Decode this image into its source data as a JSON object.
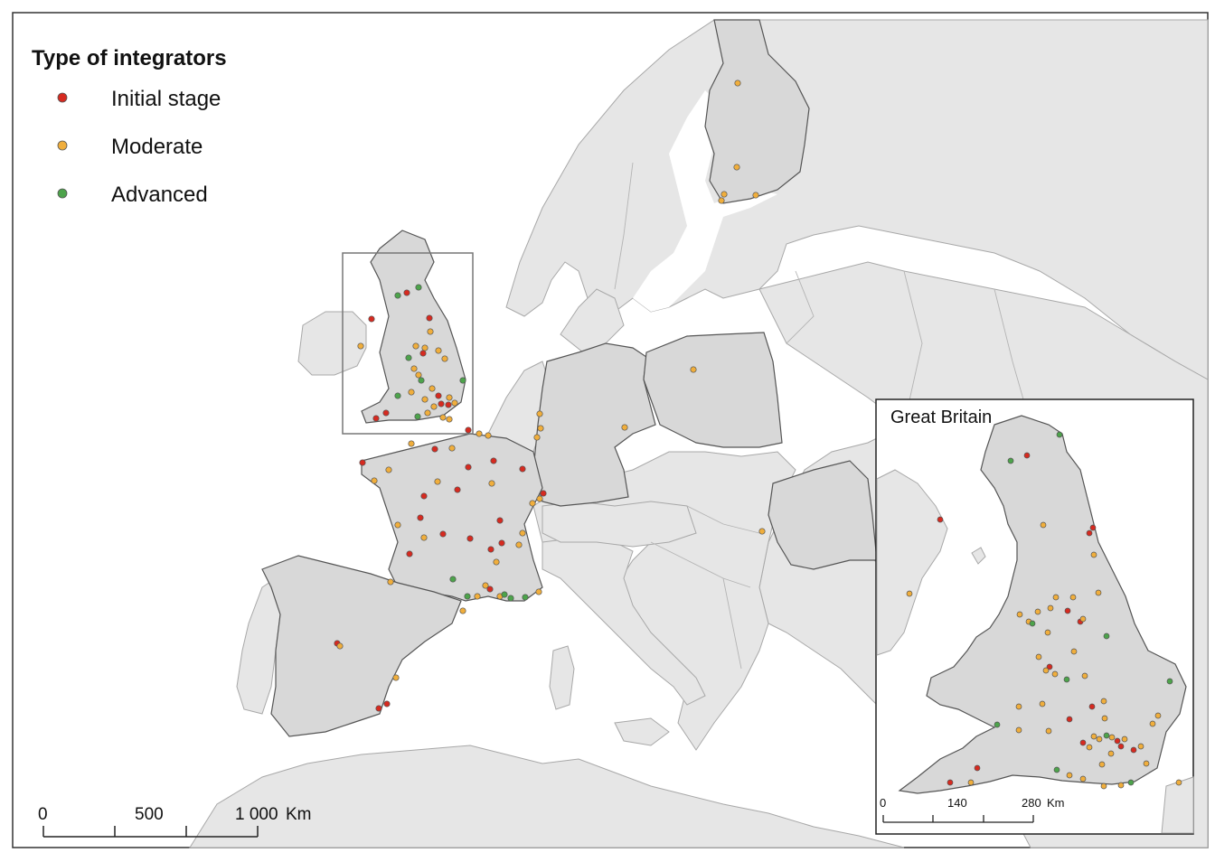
{
  "legend": {
    "title": "Type of integrators",
    "items": [
      {
        "key": "initial",
        "label": "Initial stage",
        "color": "#d62a20"
      },
      {
        "key": "moderate",
        "label": "Moderate",
        "color": "#f0ae3c"
      },
      {
        "key": "advanced",
        "label": "Advanced",
        "color": "#4da34b"
      }
    ]
  },
  "colors": {
    "initial": "#d62a20",
    "moderate": "#f0ae3c",
    "advanced": "#4da34b",
    "study_land": "#d8d8d8",
    "other_land": "#e6e6e6"
  },
  "scale_bar": {
    "labels": [
      "0",
      "500",
      "1 000"
    ],
    "unit": "Km"
  },
  "inset": {
    "title": "Great Britain",
    "scale_labels": [
      "0",
      "140",
      "280"
    ],
    "unit": "Km"
  }
}
